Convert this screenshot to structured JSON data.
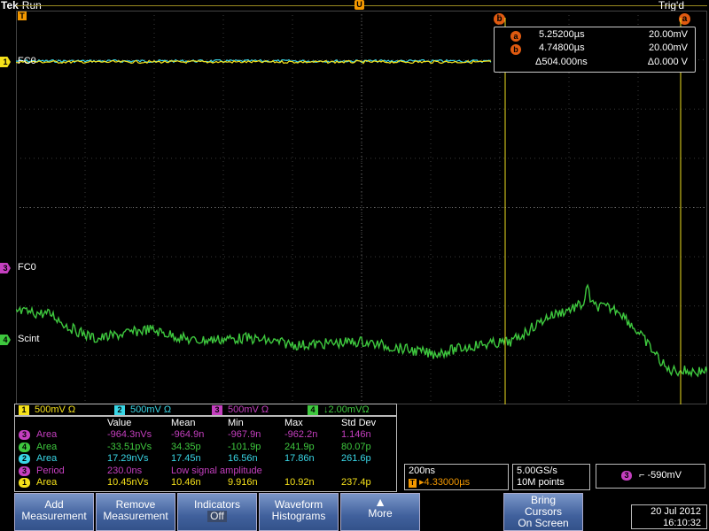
{
  "header": {
    "brand": "Tek",
    "state": "Run",
    "trigger_status": "Trig'd"
  },
  "cursors": {
    "a_label": "a",
    "b_label": "b",
    "a_time": "5.25200µs",
    "a_volt": "20.00mV",
    "b_time": "4.74800µs",
    "b_volt": "20.00mV",
    "delta_time": "Δ504.000ns",
    "delta_volt": "Δ0.000 V"
  },
  "channels": [
    {
      "num": "1",
      "label": "FC0",
      "scale": "500mV Ω",
      "color": "#f5e11a"
    },
    {
      "num": "2",
      "label": "",
      "scale": "500mV Ω",
      "color": "#39d6e6"
    },
    {
      "num": "3",
      "label": "FC0",
      "scale": "500mV Ω",
      "color": "#c43fbf"
    },
    {
      "num": "4",
      "label": "Scint",
      "scale": "↓2.00mVΩ",
      "color": "#3ec83e"
    }
  ],
  "measurements": {
    "headers": [
      "Value",
      "Mean",
      "Min",
      "Max",
      "Std Dev"
    ],
    "rows": [
      {
        "ch": "3",
        "name": "Area",
        "color": "#c43fbf",
        "value": "-964.3nVs",
        "mean": "-964.9n",
        "min": "-967.9n",
        "max": "-962.2n",
        "std": "1.146n"
      },
      {
        "ch": "4",
        "name": "Area",
        "color": "#3ec83e",
        "value": "-33.51pVs",
        "mean": "34.35p",
        "min": "-101.9p",
        "max": "241.9p",
        "std": "80.07p"
      },
      {
        "ch": "2",
        "name": "Area",
        "color": "#39d6e6",
        "value": "17.29nVs",
        "mean": "17.45n",
        "min": "16.56n",
        "max": "17.86n",
        "std": "261.6p"
      },
      {
        "ch": "3",
        "name": "Period",
        "color": "#c43fbf",
        "value": "230.0ns",
        "mean": "Low signal amplitude",
        "min": "",
        "max": "",
        "std": ""
      },
      {
        "ch": "1",
        "name": "Area",
        "color": "#f5e11a",
        "value": "10.45nVs",
        "mean": "10.46n",
        "min": "9.916n",
        "max": "10.92n",
        "std": "237.4p"
      }
    ]
  },
  "timebase": {
    "scale": "200ns",
    "position": "▸4.33000µs",
    "t_glyph": "T"
  },
  "acquisition": {
    "rate": "5.00GS/s",
    "length": "10M points"
  },
  "trigger": {
    "source": "3",
    "level": "⌐ -590mV"
  },
  "buttons": {
    "add": [
      "Add",
      "Measurement"
    ],
    "remove": [
      "Remove",
      "Measurement"
    ],
    "indicators": [
      "Indicators",
      "Off"
    ],
    "histograms": [
      "Waveform",
      "Histograms"
    ],
    "more": "More",
    "bring": [
      "Bring",
      "Cursors",
      "On Screen"
    ]
  },
  "datetime": {
    "date": "20 Jul  2012",
    "time": "16:10:32"
  }
}
